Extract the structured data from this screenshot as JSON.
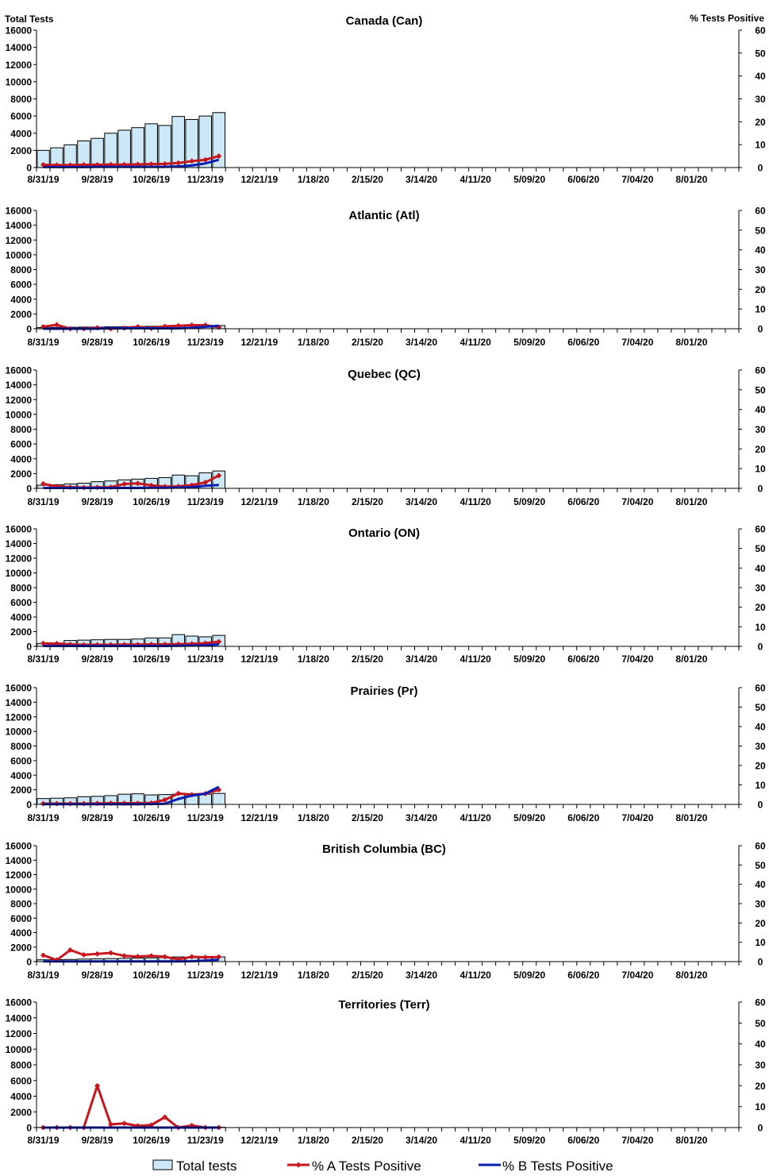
{
  "legend": {
    "total_tests": "Total tests",
    "pct_a": "% A Tests Positive",
    "pct_b": "% B Tests Positive"
  },
  "axis_labels": {
    "left": "Total Tests",
    "right": "% Tests Positive"
  },
  "colors": {
    "bar_fill": "#cde8f7",
    "bar_stroke": "#000000",
    "line_a": "#c8161d",
    "line_b": "#0a1eb4"
  },
  "chart_data": [
    {
      "type": "bar",
      "title": "Canada (Can)",
      "x_tick_labels": [
        "8/31/19",
        "9/28/19",
        "10/26/19",
        "11/23/19",
        "12/21/19",
        "1/18/20",
        "2/15/20",
        "3/14/20",
        "4/11/20",
        "5/09/20",
        "6/06/20",
        "7/04/20",
        "8/01/20"
      ],
      "y_left_ticks": [
        0,
        2000,
        4000,
        6000,
        8000,
        10000,
        12000,
        14000,
        16000
      ],
      "y_right_ticks": [
        0,
        10,
        20,
        30,
        40,
        50,
        60
      ],
      "ylim_left": [
        0,
        16000
      ],
      "ylim_right": [
        0,
        60
      ],
      "weeks_on_axis": 52,
      "series": [
        {
          "name": "Total tests",
          "axis": "left",
          "kind": "bar",
          "values": [
            2000,
            2300,
            2650,
            3100,
            3400,
            4000,
            4350,
            4650,
            5100,
            4900,
            5950,
            5600,
            6000,
            6400
          ]
        },
        {
          "name": "% A Tests Positive",
          "axis": "right",
          "kind": "line",
          "values": [
            1.2,
            1.1,
            1.1,
            1.2,
            1.2,
            1.3,
            1.3,
            1.4,
            1.5,
            1.6,
            2.0,
            2.8,
            3.4,
            5.0
          ]
        },
        {
          "name": "% B Tests Positive",
          "axis": "right",
          "kind": "line",
          "values": [
            0.2,
            0.2,
            0.2,
            0.2,
            0.3,
            0.3,
            0.3,
            0.3,
            0.3,
            0.3,
            0.5,
            0.9,
            1.8,
            3.4
          ]
        }
      ]
    },
    {
      "type": "bar",
      "title": "Atlantic (Atl)",
      "x_tick_labels": [
        "8/31/19",
        "9/28/19",
        "10/26/19",
        "11/23/19",
        "12/21/19",
        "1/18/20",
        "2/15/20",
        "3/14/20",
        "4/11/20",
        "5/09/20",
        "6/06/20",
        "7/04/20",
        "8/01/20"
      ],
      "y_left_ticks": [
        0,
        2000,
        4000,
        6000,
        8000,
        10000,
        12000,
        14000,
        16000
      ],
      "y_right_ticks": [
        0,
        10,
        20,
        30,
        40,
        50,
        60
      ],
      "ylim_left": [
        0,
        16000
      ],
      "ylim_right": [
        0,
        60
      ],
      "weeks_on_axis": 52,
      "series": [
        {
          "name": "Total tests",
          "axis": "left",
          "kind": "bar",
          "values": [
            150,
            180,
            200,
            220,
            230,
            260,
            280,
            300,
            330,
            340,
            370,
            390,
            410,
            430
          ]
        },
        {
          "name": "% A Tests Positive",
          "axis": "right",
          "kind": "line",
          "values": [
            1.0,
            2.0,
            0.0,
            0.0,
            0.5,
            0.0,
            0.3,
            1.0,
            0.2,
            1.2,
            1.5,
            1.8,
            1.8,
            0.8
          ]
        },
        {
          "name": "% B Tests Positive",
          "axis": "right",
          "kind": "line",
          "values": [
            0.0,
            0.0,
            0.0,
            0.0,
            0.0,
            0.3,
            0.2,
            0.3,
            0.2,
            0.2,
            0.2,
            0.5,
            1.0,
            1.5
          ]
        }
      ]
    },
    {
      "type": "bar",
      "title": "Quebec (QC)",
      "x_tick_labels": [
        "8/31/19",
        "9/28/19",
        "10/26/19",
        "11/23/19",
        "12/21/19",
        "1/18/20",
        "2/15/20",
        "3/14/20",
        "4/11/20",
        "5/09/20",
        "6/06/20",
        "7/04/20",
        "8/01/20"
      ],
      "y_left_ticks": [
        0,
        2000,
        4000,
        6000,
        8000,
        10000,
        12000,
        14000,
        16000
      ],
      "y_right_ticks": [
        0,
        10,
        20,
        30,
        40,
        50,
        60
      ],
      "ylim_left": [
        0,
        16000
      ],
      "ylim_right": [
        0,
        60
      ],
      "weeks_on_axis": 52,
      "series": [
        {
          "name": "Total tests",
          "axis": "left",
          "kind": "bar",
          "values": [
            420,
            480,
            600,
            700,
            900,
            1000,
            1150,
            1250,
            1350,
            1450,
            1800,
            1700,
            2100,
            2350
          ]
        },
        {
          "name": "% A Tests Positive",
          "axis": "right",
          "kind": "line",
          "values": [
            2.3,
            1.0,
            0.6,
            0.4,
            0.5,
            0.6,
            2.2,
            2.5,
            1.5,
            0.9,
            1.0,
            1.6,
            3.0,
            6.5
          ]
        },
        {
          "name": "% B Tests Positive",
          "axis": "right",
          "kind": "line",
          "values": [
            0.2,
            0.2,
            0.2,
            0.2,
            0.2,
            0.2,
            0.2,
            0.2,
            0.3,
            0.3,
            0.4,
            0.6,
            1.3,
            1.7
          ]
        }
      ]
    },
    {
      "type": "bar",
      "title": "Ontario (ON)",
      "x_tick_labels": [
        "8/31/19",
        "9/28/19",
        "10/26/19",
        "11/23/19",
        "12/21/19",
        "1/18/20",
        "2/15/20",
        "3/14/20",
        "4/11/20",
        "5/09/20",
        "6/06/20",
        "7/04/20",
        "8/01/20"
      ],
      "y_left_ticks": [
        0,
        2000,
        4000,
        6000,
        8000,
        10000,
        12000,
        14000,
        16000
      ],
      "y_right_ticks": [
        0,
        10,
        20,
        30,
        40,
        50,
        60
      ],
      "ylim_left": [
        0,
        16000
      ],
      "ylim_right": [
        0,
        60
      ],
      "weeks_on_axis": 52,
      "series": [
        {
          "name": "Total tests",
          "axis": "left",
          "kind": "bar",
          "values": [
            400,
            450,
            800,
            850,
            900,
            950,
            950,
            1000,
            1150,
            1150,
            1600,
            1400,
            1300,
            1500
          ]
        },
        {
          "name": "% A Tests Positive",
          "axis": "right",
          "kind": "line",
          "values": [
            1.5,
            1.4,
            1.0,
            0.8,
            0.8,
            0.8,
            0.9,
            0.9,
            1.0,
            1.0,
            1.1,
            1.3,
            1.6,
            2.4
          ]
        },
        {
          "name": "% B Tests Positive",
          "axis": "right",
          "kind": "line",
          "values": [
            0.2,
            0.2,
            0.2,
            0.2,
            0.2,
            0.2,
            0.2,
            0.2,
            0.2,
            0.2,
            0.3,
            0.4,
            0.6,
            1.0
          ]
        }
      ]
    },
    {
      "type": "bar",
      "title": "Prairies (Pr)",
      "x_tick_labels": [
        "8/31/19",
        "9/28/19",
        "10/26/19",
        "11/23/19",
        "12/21/19",
        "1/18/20",
        "2/15/20",
        "3/14/20",
        "4/11/20",
        "5/09/20",
        "6/06/20",
        "7/04/20",
        "8/01/20"
      ],
      "y_left_ticks": [
        0,
        2000,
        4000,
        6000,
        8000,
        10000,
        12000,
        14000,
        16000
      ],
      "y_right_ticks": [
        0,
        10,
        20,
        30,
        40,
        50,
        60
      ],
      "ylim_left": [
        0,
        16000
      ],
      "ylim_right": [
        0,
        60
      ],
      "weeks_on_axis": 52,
      "series": [
        {
          "name": "Total tests",
          "axis": "left",
          "kind": "bar",
          "values": [
            800,
            850,
            900,
            1050,
            1100,
            1200,
            1400,
            1450,
            1300,
            1350,
            1400,
            1350,
            1400,
            1500
          ]
        },
        {
          "name": "% A Tests Positive",
          "axis": "right",
          "kind": "line",
          "values": [
            0.4,
            0.4,
            0.4,
            0.4,
            0.5,
            0.6,
            0.6,
            0.6,
            0.7,
            2.3,
            5.6,
            5.0,
            5.5,
            7.5
          ]
        },
        {
          "name": "% B Tests Positive",
          "axis": "right",
          "kind": "line",
          "values": [
            0.1,
            0.1,
            0.1,
            0.1,
            0.1,
            0.1,
            0.1,
            0.1,
            0.2,
            0.3,
            2.8,
            4.5,
            5.5,
            9.0
          ]
        }
      ]
    },
    {
      "type": "bar",
      "title": "British Columbia (BC)",
      "x_tick_labels": [
        "8/31/19",
        "9/28/19",
        "10/26/19",
        "11/23/19",
        "12/21/19",
        "1/18/20",
        "2/15/20",
        "3/14/20",
        "4/11/20",
        "5/09/20",
        "6/06/20",
        "7/04/20",
        "8/01/20"
      ],
      "y_left_ticks": [
        0,
        2000,
        4000,
        6000,
        8000,
        10000,
        12000,
        14000,
        16000
      ],
      "y_right_ticks": [
        0,
        10,
        20,
        30,
        40,
        50,
        60
      ],
      "ylim_left": [
        0,
        16000
      ],
      "ylim_right": [
        0,
        60
      ],
      "weeks_on_axis": 52,
      "series": [
        {
          "name": "Total tests",
          "axis": "left",
          "kind": "bar",
          "values": [
            250,
            280,
            300,
            350,
            380,
            420,
            450,
            500,
            520,
            560,
            650,
            600,
            620,
            650
          ]
        },
        {
          "name": "% A Tests Positive",
          "axis": "right",
          "kind": "line",
          "values": [
            3.3,
            0.8,
            6.0,
            3.5,
            4.0,
            4.5,
            3.0,
            2.6,
            3.0,
            2.5,
            1.2,
            2.5,
            2.2,
            2.4
          ]
        },
        {
          "name": "% B Tests Positive",
          "axis": "right",
          "kind": "line",
          "values": [
            0.1,
            0.1,
            0.1,
            0.1,
            0.1,
            0.1,
            0.1,
            0.1,
            0.1,
            0.1,
            0.1,
            0.2,
            0.5,
            1.0
          ]
        }
      ]
    },
    {
      "type": "bar",
      "title": "Territories (Terr)",
      "x_tick_labels": [
        "8/31/19",
        "9/28/19",
        "10/26/19",
        "11/23/19",
        "12/21/19",
        "1/18/20",
        "2/15/20",
        "3/14/20",
        "4/11/20",
        "5/09/20",
        "6/06/20",
        "7/04/20",
        "8/01/20"
      ],
      "y_left_ticks": [
        0,
        2000,
        4000,
        6000,
        8000,
        10000,
        12000,
        14000,
        16000
      ],
      "y_right_ticks": [
        0,
        10,
        20,
        30,
        40,
        50,
        60
      ],
      "ylim_left": [
        0,
        16000
      ],
      "ylim_right": [
        0,
        60
      ],
      "weeks_on_axis": 52,
      "series": [
        {
          "name": "Total tests",
          "axis": "left",
          "kind": "bar",
          "values": [
            15,
            15,
            20,
            20,
            25,
            25,
            30,
            30,
            30,
            35,
            35,
            35,
            40,
            40
          ]
        },
        {
          "name": "% A Tests Positive",
          "axis": "right",
          "kind": "line",
          "values": [
            0,
            0,
            0,
            0,
            20,
            1.5,
            2.0,
            0.8,
            1.2,
            5.0,
            0,
            1.0,
            0,
            0
          ]
        },
        {
          "name": "% B Tests Positive",
          "axis": "right",
          "kind": "line",
          "values": [
            0,
            0,
            0,
            0,
            0,
            0,
            0,
            0,
            0,
            0,
            0,
            0,
            0,
            0
          ]
        }
      ]
    }
  ]
}
